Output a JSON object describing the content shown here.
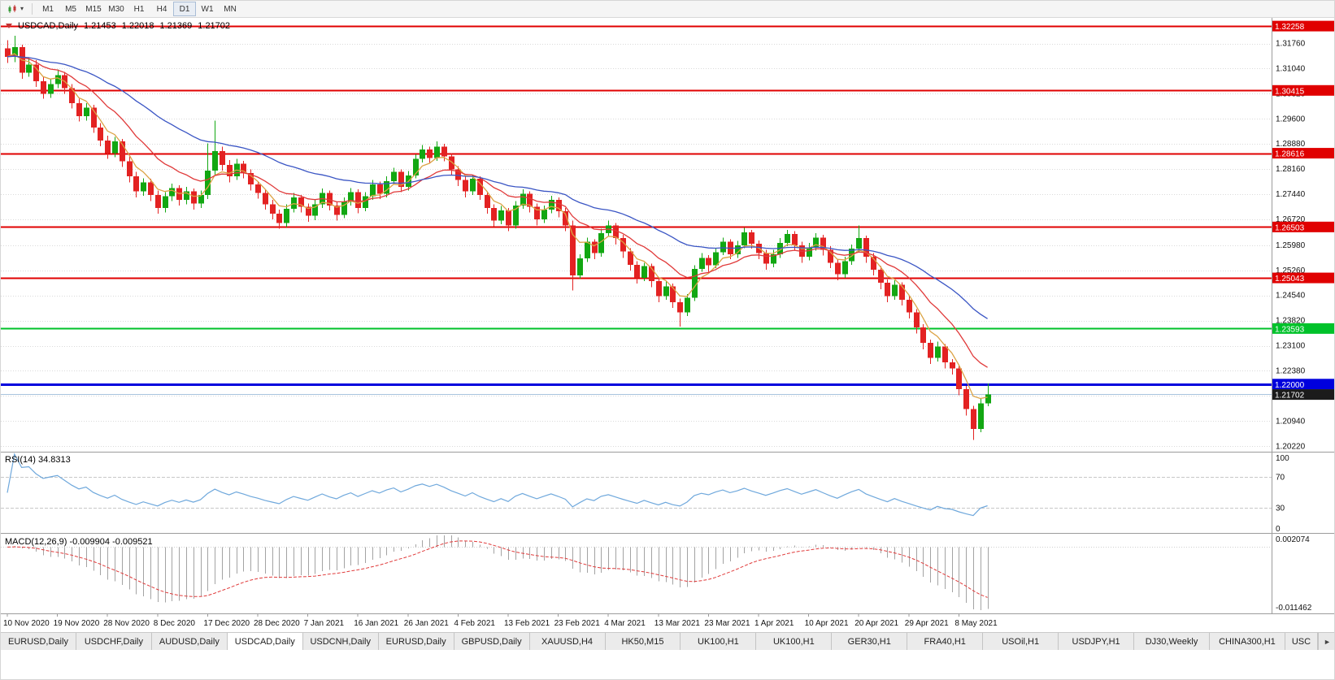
{
  "toolbar": {
    "timeframes": [
      "M1",
      "M5",
      "M15",
      "M30",
      "H1",
      "H4",
      "D1",
      "W1",
      "MN"
    ],
    "active_timeframe": "D1",
    "caret_icon": "▾"
  },
  "chart": {
    "header": {
      "symbol": "USDCAD,Daily",
      "open": "1.21453",
      "high": "1.22018",
      "low": "1.21369",
      "close": "1.21702"
    }
  },
  "indicators": {
    "rsi": {
      "display": "RSI(14) 34.8313",
      "period": 14,
      "value": 34.8313,
      "levels": [
        100,
        70,
        30,
        0
      ],
      "line_color": "#6fa8dc"
    },
    "macd": {
      "display": "MACD(12,26,9) -0.009904 -0.009521",
      "macd_value": -0.009904,
      "signal_value": -0.009521,
      "axis_labels": [
        "0.002074",
        "-0.011462"
      ],
      "vmax": 0.002074,
      "vmin": -0.011462,
      "hist_color": "#a3a3a3",
      "signal_color": "#e03a3a"
    }
  },
  "chart_data": {
    "type": "candlestick",
    "symbol": "USDCAD",
    "timeframe": "Daily",
    "colors": {
      "up": "#12a712",
      "down": "#e32222"
    },
    "y_axis": {
      "max": 1.3247,
      "min": 1.2011,
      "ticks": [
        "1.31760",
        "1.31040",
        "1.30320",
        "1.29600",
        "1.28880",
        "1.28160",
        "1.27440",
        "1.26720",
        "1.25980",
        "1.25260",
        "1.24540",
        "1.23820",
        "1.23100",
        "1.22380",
        "1.21660",
        "1.20940",
        "1.20220"
      ]
    },
    "hlines": [
      {
        "value": 1.32258,
        "label": "1.32258",
        "color": "#e00000",
        "width": 2
      },
      {
        "value": 1.30415,
        "label": "1.30415",
        "color": "#e00000",
        "width": 2
      },
      {
        "value": 1.28616,
        "label": "1.28616",
        "color": "#e00000",
        "width": 2
      },
      {
        "value": 1.26503,
        "label": "1.26503",
        "color": "#e00000",
        "width": 2
      },
      {
        "value": 1.25043,
        "label": "1.25043",
        "color": "#e00000",
        "width": 2
      },
      {
        "value": 1.23593,
        "label": "1.23593",
        "color": "#00c22a",
        "width": 2
      },
      {
        "value": 1.22,
        "label": "1.22000",
        "color": "#0000dd",
        "width": 3
      }
    ],
    "current_price": {
      "value": 1.21702,
      "label": "1.21702",
      "tag_color": "#1b1b1b",
      "line_color": "#a8c4de"
    },
    "moving_averages": [
      {
        "period": 5,
        "color": "#dca345",
        "name": "fast-ma"
      },
      {
        "period": 13,
        "color": "#e03a3a",
        "name": "mid-ma"
      },
      {
        "period": 34,
        "color": "#3a55c4",
        "name": "slow-ma"
      }
    ],
    "x_labels": [
      {
        "text": "10 Nov 2020",
        "bar": 0
      },
      {
        "text": "19 Nov 2020",
        "bar": 7
      },
      {
        "text": "28 Nov 2020",
        "bar": 14
      },
      {
        "text": "8 Dec 2020",
        "bar": 21
      },
      {
        "text": "17 Dec 2020",
        "bar": 28
      },
      {
        "text": "28 Dec 2020",
        "bar": 35
      },
      {
        "text": "7 Jan 2021",
        "bar": 42
      },
      {
        "text": "16 Jan 2021",
        "bar": 49
      },
      {
        "text": "26 Jan 2021",
        "bar": 56
      },
      {
        "text": "4 Feb 2021",
        "bar": 63
      },
      {
        "text": "13 Feb 2021",
        "bar": 70
      },
      {
        "text": "23 Feb 2021",
        "bar": 77
      },
      {
        "text": "4 Mar 2021",
        "bar": 84
      },
      {
        "text": "13 Mar 2021",
        "bar": 91
      },
      {
        "text": "23 Mar 2021",
        "bar": 98
      },
      {
        "text": "1 Apr 2021",
        "bar": 105
      },
      {
        "text": "10 Apr 2021",
        "bar": 112
      },
      {
        "text": "20 Apr 2021",
        "bar": 119
      },
      {
        "text": "29 Apr 2021",
        "bar": 126
      },
      {
        "text": "8 May 2021",
        "bar": 133
      }
    ],
    "candles": [
      [
        1.3162,
        1.3185,
        1.312,
        1.3138
      ],
      [
        1.3138,
        1.3198,
        1.3122,
        1.3165
      ],
      [
        1.3165,
        1.3172,
        1.3075,
        1.3092
      ],
      [
        1.3092,
        1.3135,
        1.308,
        1.3115
      ],
      [
        1.3115,
        1.3128,
        1.3052,
        1.3068
      ],
      [
        1.3068,
        1.3082,
        1.3018,
        1.3032
      ],
      [
        1.3032,
        1.3075,
        1.302,
        1.306
      ],
      [
        1.306,
        1.3102,
        1.3048,
        1.3085
      ],
      [
        1.3085,
        1.3095,
        1.3032,
        1.3048
      ],
      [
        1.3048,
        1.306,
        1.299,
        1.3005
      ],
      [
        1.3005,
        1.3018,
        1.2952,
        1.2968
      ],
      [
        1.2968,
        1.3005,
        1.2955,
        1.2992
      ],
      [
        1.2992,
        1.3,
        1.292,
        1.2935
      ],
      [
        1.2935,
        1.2948,
        1.2882,
        1.2898
      ],
      [
        1.2898,
        1.2912,
        1.2845,
        1.2862
      ],
      [
        1.2862,
        1.2908,
        1.285,
        1.2895
      ],
      [
        1.2895,
        1.2902,
        1.2822,
        1.2838
      ],
      [
        1.2838,
        1.2852,
        1.2778,
        1.2795
      ],
      [
        1.2795,
        1.2808,
        1.2735,
        1.2752
      ],
      [
        1.2752,
        1.279,
        1.274,
        1.2778
      ],
      [
        1.2778,
        1.2788,
        1.2725,
        1.2742
      ],
      [
        1.2742,
        1.2755,
        1.2688,
        1.2705
      ],
      [
        1.2705,
        1.275,
        1.2692,
        1.2738
      ],
      [
        1.2738,
        1.2775,
        1.2725,
        1.2762
      ],
      [
        1.2762,
        1.277,
        1.2712,
        1.2728
      ],
      [
        1.2728,
        1.2765,
        1.2715,
        1.2752
      ],
      [
        1.2752,
        1.276,
        1.27,
        1.2718
      ],
      [
        1.2718,
        1.2755,
        1.2705,
        1.2742
      ],
      [
        1.2742,
        1.289,
        1.273,
        1.2812
      ],
      [
        1.2812,
        1.2955,
        1.2798,
        1.2868
      ],
      [
        1.2868,
        1.288,
        1.2812,
        1.2828
      ],
      [
        1.2828,
        1.2842,
        1.2778,
        1.2795
      ],
      [
        1.2795,
        1.2845,
        1.2785,
        1.2832
      ],
      [
        1.2832,
        1.284,
        1.279,
        1.2805
      ],
      [
        1.2805,
        1.2815,
        1.2755,
        1.2772
      ],
      [
        1.2772,
        1.2782,
        1.2732,
        1.2748
      ],
      [
        1.2748,
        1.2758,
        1.27,
        1.2715
      ],
      [
        1.2715,
        1.2728,
        1.2672,
        1.2688
      ],
      [
        1.2688,
        1.27,
        1.2645,
        1.2662
      ],
      [
        1.2662,
        1.2715,
        1.265,
        1.2702
      ],
      [
        1.2702,
        1.2748,
        1.2692,
        1.2735
      ],
      [
        1.2735,
        1.2742,
        1.2692,
        1.2708
      ],
      [
        1.2708,
        1.2718,
        1.2665,
        1.2682
      ],
      [
        1.2682,
        1.2728,
        1.267,
        1.2715
      ],
      [
        1.2715,
        1.276,
        1.2705,
        1.2748
      ],
      [
        1.2748,
        1.2755,
        1.2698,
        1.2712
      ],
      [
        1.2712,
        1.2722,
        1.2668,
        1.2685
      ],
      [
        1.2685,
        1.2735,
        1.2675,
        1.2722
      ],
      [
        1.2722,
        1.2762,
        1.2712,
        1.275
      ],
      [
        1.275,
        1.2758,
        1.269,
        1.2705
      ],
      [
        1.2705,
        1.275,
        1.2695,
        1.2738
      ],
      [
        1.2738,
        1.2785,
        1.2728,
        1.2772
      ],
      [
        1.2772,
        1.278,
        1.273,
        1.2745
      ],
      [
        1.2745,
        1.2795,
        1.2735,
        1.2782
      ],
      [
        1.2782,
        1.282,
        1.2772,
        1.2808
      ],
      [
        1.2808,
        1.2815,
        1.275,
        1.2765
      ],
      [
        1.2765,
        1.281,
        1.2755,
        1.2798
      ],
      [
        1.2798,
        1.2858,
        1.279,
        1.2845
      ],
      [
        1.2845,
        1.2885,
        1.2835,
        1.2872
      ],
      [
        1.2872,
        1.288,
        1.2832,
        1.2848
      ],
      [
        1.2848,
        1.2895,
        1.284,
        1.288
      ],
      [
        1.288,
        1.2888,
        1.2838,
        1.2852
      ],
      [
        1.2852,
        1.2862,
        1.28,
        1.2815
      ],
      [
        1.2815,
        1.2825,
        1.2768,
        1.2785
      ],
      [
        1.2785,
        1.2795,
        1.2735,
        1.2752
      ],
      [
        1.2752,
        1.28,
        1.2742,
        1.2788
      ],
      [
        1.2788,
        1.2795,
        1.2728,
        1.2742
      ],
      [
        1.2742,
        1.2752,
        1.2688,
        1.2705
      ],
      [
        1.2705,
        1.2715,
        1.2652,
        1.2668
      ],
      [
        1.2668,
        1.271,
        1.2658,
        1.2698
      ],
      [
        1.2698,
        1.2705,
        1.2638,
        1.2655
      ],
      [
        1.2655,
        1.2725,
        1.2645,
        1.2712
      ],
      [
        1.2712,
        1.2758,
        1.2702,
        1.2745
      ],
      [
        1.2745,
        1.2752,
        1.2692,
        1.2708
      ],
      [
        1.2708,
        1.2718,
        1.2655,
        1.2672
      ],
      [
        1.2672,
        1.2712,
        1.2662,
        1.27
      ],
      [
        1.27,
        1.274,
        1.269,
        1.2728
      ],
      [
        1.2728,
        1.2735,
        1.2678,
        1.2695
      ],
      [
        1.2695,
        1.2705,
        1.2638,
        1.2655
      ],
      [
        1.2655,
        1.2668,
        1.2468,
        1.2512
      ],
      [
        1.2512,
        1.2572,
        1.2502,
        1.256
      ],
      [
        1.256,
        1.262,
        1.255,
        1.2608
      ],
      [
        1.2608,
        1.2615,
        1.2558,
        1.2575
      ],
      [
        1.2575,
        1.2645,
        1.2565,
        1.2632
      ],
      [
        1.2632,
        1.2668,
        1.2622,
        1.2655
      ],
      [
        1.2655,
        1.2662,
        1.26,
        1.2618
      ],
      [
        1.2618,
        1.2628,
        1.2562,
        1.258
      ],
      [
        1.258,
        1.259,
        1.2525,
        1.2542
      ],
      [
        1.2542,
        1.2552,
        1.2488,
        1.2505
      ],
      [
        1.2505,
        1.2548,
        1.2495,
        1.2538
      ],
      [
        1.2538,
        1.2545,
        1.2478,
        1.2495
      ],
      [
        1.2495,
        1.2505,
        1.2435,
        1.2452
      ],
      [
        1.2452,
        1.2495,
        1.2442,
        1.248
      ],
      [
        1.248,
        1.2488,
        1.2418,
        1.2435
      ],
      [
        1.2435,
        1.2445,
        1.2365,
        1.2405
      ],
      [
        1.2405,
        1.2458,
        1.2395,
        1.2448
      ],
      [
        1.2448,
        1.254,
        1.2438,
        1.253
      ],
      [
        1.253,
        1.2575,
        1.2522,
        1.2562
      ],
      [
        1.2562,
        1.257,
        1.2522,
        1.254
      ],
      [
        1.254,
        1.259,
        1.2532,
        1.2578
      ],
      [
        1.2578,
        1.262,
        1.257,
        1.2608
      ],
      [
        1.2608,
        1.2615,
        1.2558,
        1.2572
      ],
      [
        1.2572,
        1.261,
        1.2562,
        1.2598
      ],
      [
        1.2598,
        1.2648,
        1.259,
        1.2635
      ],
      [
        1.2635,
        1.2642,
        1.2588,
        1.2602
      ],
      [
        1.2602,
        1.2612,
        1.2558,
        1.2575
      ],
      [
        1.2575,
        1.2585,
        1.2528,
        1.2545
      ],
      [
        1.2545,
        1.2585,
        1.2535,
        1.2572
      ],
      [
        1.2572,
        1.2618,
        1.2562,
        1.2605
      ],
      [
        1.2605,
        1.2642,
        1.2595,
        1.263
      ],
      [
        1.263,
        1.2638,
        1.2582,
        1.2598
      ],
      [
        1.2598,
        1.2608,
        1.2548,
        1.2565
      ],
      [
        1.2565,
        1.2605,
        1.2555,
        1.2592
      ],
      [
        1.2592,
        1.2632,
        1.2582,
        1.262
      ],
      [
        1.262,
        1.2628,
        1.2568,
        1.2585
      ],
      [
        1.2585,
        1.2595,
        1.2532,
        1.2548
      ],
      [
        1.2548,
        1.2558,
        1.2498,
        1.2515
      ],
      [
        1.2515,
        1.2565,
        1.2505,
        1.2552
      ],
      [
        1.2552,
        1.26,
        1.2542,
        1.2588
      ],
      [
        1.2588,
        1.2655,
        1.2578,
        1.2618
      ],
      [
        1.2618,
        1.2625,
        1.2548,
        1.2565
      ],
      [
        1.2565,
        1.2575,
        1.2512,
        1.2528
      ],
      [
        1.2528,
        1.2538,
        1.2472,
        1.249
      ],
      [
        1.249,
        1.25,
        1.2435,
        1.2452
      ],
      [
        1.2452,
        1.2498,
        1.2442,
        1.2485
      ],
      [
        1.2485,
        1.2492,
        1.2425,
        1.2442
      ],
      [
        1.2442,
        1.2452,
        1.2388,
        1.2405
      ],
      [
        1.2405,
        1.2415,
        1.2345,
        1.2362
      ],
      [
        1.2362,
        1.2372,
        1.23,
        1.2318
      ],
      [
        1.2318,
        1.2328,
        1.2258,
        1.2275
      ],
      [
        1.2275,
        1.2322,
        1.2265,
        1.2308
      ],
      [
        1.2308,
        1.2315,
        1.2245,
        1.2262
      ],
      [
        1.2262,
        1.2272,
        1.2228,
        1.2245
      ],
      [
        1.2245,
        1.2252,
        1.2168,
        1.2185
      ],
      [
        1.2185,
        1.2195,
        1.211,
        1.2128
      ],
      [
        1.2128,
        1.2138,
        1.204,
        1.2072
      ],
      [
        1.2072,
        1.2158,
        1.2062,
        1.2145
      ],
      [
        1.21453,
        1.22018,
        1.21369,
        1.21702
      ]
    ]
  },
  "tabs": {
    "scroll_icon": "►",
    "items": [
      {
        "label": "EURUSD,Daily"
      },
      {
        "label": "USDCHF,Daily"
      },
      {
        "label": "AUDUSD,Daily"
      },
      {
        "label": "USDCAD,Daily",
        "active": true
      },
      {
        "label": "USDCNH,Daily"
      },
      {
        "label": "EURUSD,Daily"
      },
      {
        "label": "GBPUSD,Daily"
      },
      {
        "label": "XAUUSD,H4"
      },
      {
        "label": "HK50,M15"
      },
      {
        "label": "UK100,H1"
      },
      {
        "label": "UK100,H1"
      },
      {
        "label": "GER30,H1"
      },
      {
        "label": "FRA40,H1"
      },
      {
        "label": "USOil,H1"
      },
      {
        "label": "USDJPY,H1"
      },
      {
        "label": "DJ30,Weekly"
      },
      {
        "label": "CHINA300,H1"
      },
      {
        "label": "USC",
        "truncated": true
      }
    ]
  }
}
